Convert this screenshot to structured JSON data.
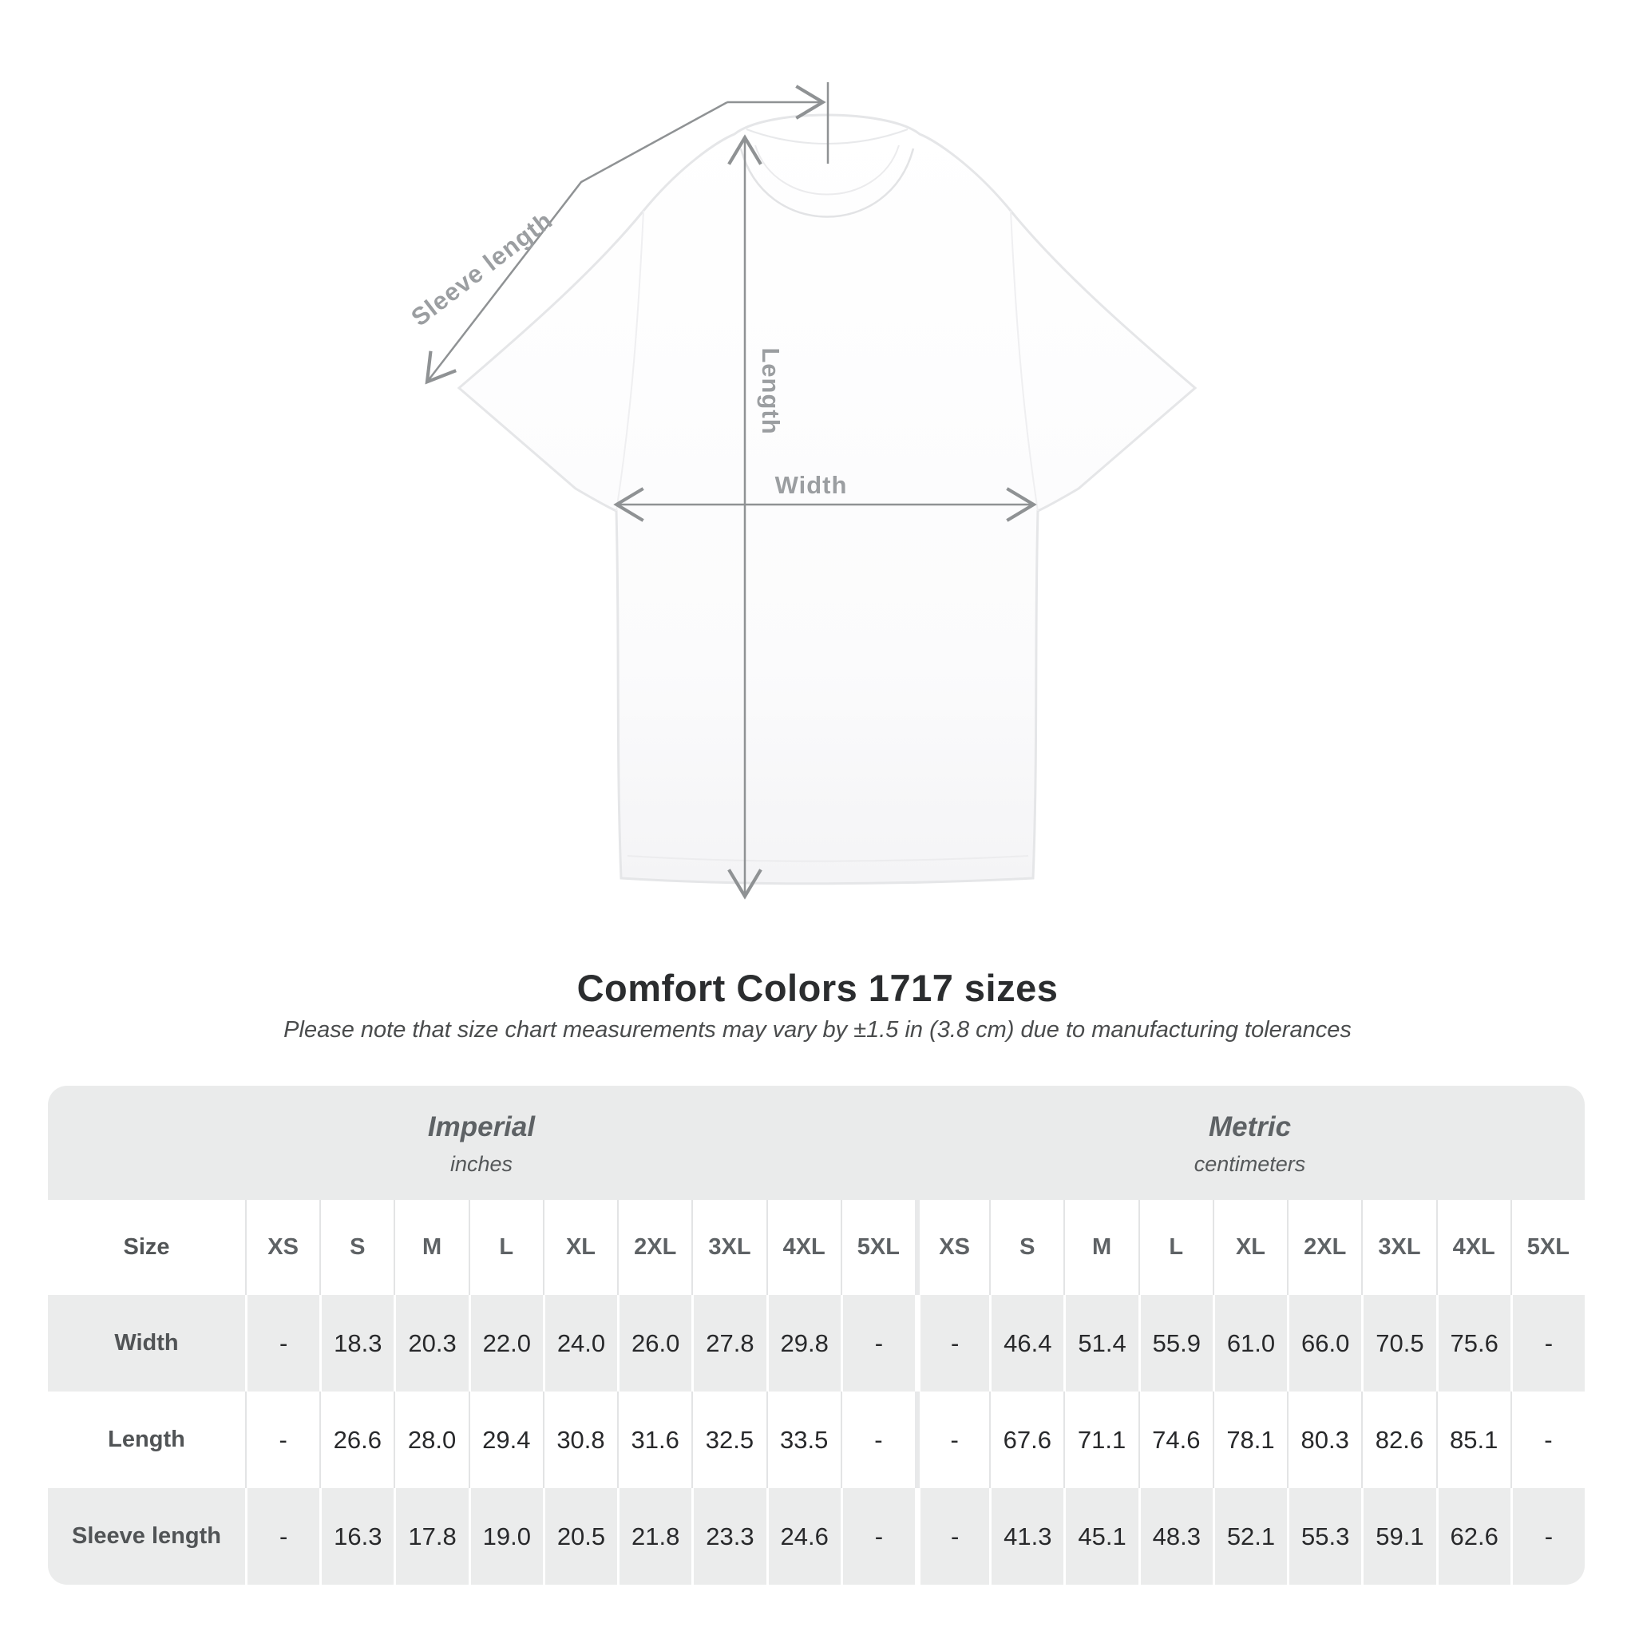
{
  "diagram": {
    "labels": {
      "sleeve_length": "Sleeve length",
      "length": "Length",
      "width": "Width"
    },
    "arrow_color": "#8f9294",
    "label_color": "#9b9ea1"
  },
  "title": "Comfort Colors 1717 sizes",
  "subtitle": "Please note that size chart measurements may vary by ±1.5 in (3.8 cm) due to manufacturing tolerances",
  "table": {
    "unit_headers": [
      {
        "label": "Imperial",
        "sub": "inches"
      },
      {
        "label": "Metric",
        "sub": "centimeters"
      }
    ],
    "size_column_header": "Size",
    "sizes": [
      "XS",
      "S",
      "M",
      "L",
      "XL",
      "2XL",
      "3XL",
      "4XL",
      "5XL"
    ],
    "rows": [
      {
        "label": "Width",
        "imperial": [
          "-",
          "18.3",
          "20.3",
          "22.0",
          "24.0",
          "26.0",
          "27.8",
          "29.8",
          "-"
        ],
        "metric": [
          "-",
          "46.4",
          "51.4",
          "55.9",
          "61.0",
          "66.0",
          "70.5",
          "75.6",
          "-"
        ]
      },
      {
        "label": "Length",
        "imperial": [
          "-",
          "26.6",
          "28.0",
          "29.4",
          "30.8",
          "31.6",
          "32.5",
          "33.5",
          "-"
        ],
        "metric": [
          "-",
          "67.6",
          "71.1",
          "74.6",
          "78.1",
          "80.3",
          "82.6",
          "85.1",
          "-"
        ]
      },
      {
        "label": "Sleeve length",
        "imperial": [
          "-",
          "16.3",
          "17.8",
          "19.0",
          "20.5",
          "21.8",
          "23.3",
          "24.6",
          "-"
        ],
        "metric": [
          "-",
          "41.3",
          "45.1",
          "48.3",
          "52.1",
          "55.3",
          "59.1",
          "62.6",
          "-"
        ]
      }
    ],
    "colors": {
      "band_gray": "#eaebeb",
      "row_gray": "#ebecec",
      "header_text": "#5e6265",
      "value_text": "#28292b"
    }
  }
}
